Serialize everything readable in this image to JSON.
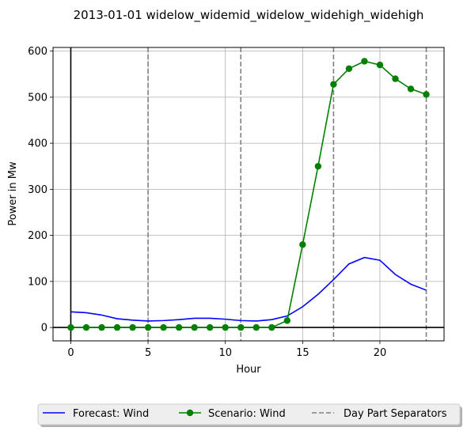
{
  "chart_data": {
    "type": "line",
    "title": "2013-01-01 widelow_widemid_widelow_widehigh_widehigh",
    "xlabel": "Hour",
    "ylabel": "Power in Mw",
    "xlim": [
      -1.15,
      24.15
    ],
    "ylim": [
      -29,
      608
    ],
    "xticks": [
      0,
      5,
      10,
      15,
      20
    ],
    "yticks": [
      0,
      100,
      200,
      300,
      400,
      500,
      600
    ],
    "grid": true,
    "legend_position": "below-center",
    "x": [
      0,
      1,
      2,
      3,
      4,
      5,
      6,
      7,
      8,
      9,
      10,
      11,
      12,
      13,
      14,
      15,
      16,
      17,
      18,
      19,
      20,
      21,
      22,
      23
    ],
    "series": [
      {
        "name": "Forecast: Wind",
        "color": "#0000ff",
        "style": "solid",
        "marker": "none",
        "values": [
          34,
          32,
          27,
          19,
          16,
          14,
          15,
          17,
          20,
          20,
          18,
          15,
          14,
          17,
          25,
          45,
          72,
          104,
          138,
          152,
          146,
          115,
          94,
          81
        ]
      },
      {
        "name": "Scenario: Wind",
        "color": "#008000",
        "style": "solid",
        "marker": "circle",
        "values": [
          0,
          0,
          0,
          0,
          0,
          0,
          0,
          0,
          0,
          0,
          0,
          0,
          0,
          0,
          15,
          180,
          350,
          528,
          562,
          578,
          570,
          540,
          518,
          506
        ]
      }
    ],
    "separators": {
      "name": "Day Part Separators",
      "color": "#808080",
      "style": "dashed",
      "x": [
        5,
        11,
        17,
        23
      ]
    },
    "reference_lines": {
      "vertical_x": 0,
      "horizontal_y": 0,
      "color": "#000000"
    }
  }
}
